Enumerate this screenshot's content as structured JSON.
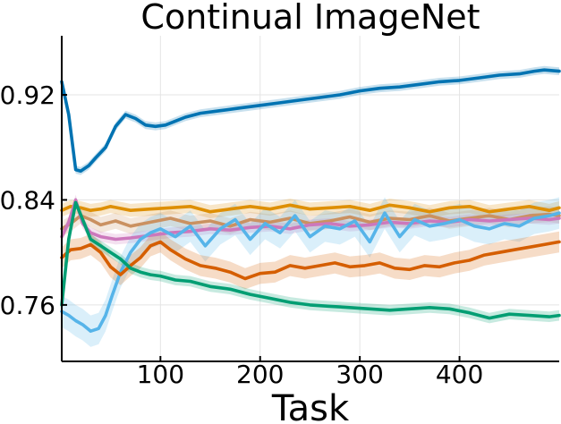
{
  "chart_data": {
    "type": "line",
    "title": "Continual ImageNet",
    "xlabel": "Task",
    "ylabel": "",
    "xlim": [
      1,
      500
    ],
    "ylim": [
      0.717,
      0.965
    ],
    "xticks": [
      100,
      200,
      300,
      400
    ],
    "yticks": [
      0.76,
      0.84,
      0.92
    ],
    "ytick_labels": [
      "0.76",
      "0.84",
      "0.92"
    ],
    "grid": true,
    "legend": "none",
    "series": [
      {
        "color": "#0173b2",
        "band": 0.003,
        "x": [
          1,
          8,
          15,
          20,
          28,
          35,
          45,
          55,
          65,
          75,
          85,
          95,
          105,
          115,
          125,
          140,
          160,
          180,
          200,
          220,
          240,
          260,
          280,
          300,
          320,
          340,
          360,
          380,
          400,
          420,
          440,
          460,
          475,
          485,
          500
        ],
        "y": [
          0.93,
          0.905,
          0.863,
          0.862,
          0.866,
          0.872,
          0.88,
          0.896,
          0.905,
          0.902,
          0.897,
          0.896,
          0.897,
          0.9,
          0.903,
          0.906,
          0.908,
          0.91,
          0.912,
          0.914,
          0.916,
          0.918,
          0.92,
          0.923,
          0.925,
          0.926,
          0.928,
          0.93,
          0.931,
          0.933,
          0.935,
          0.936,
          0.938,
          0.939,
          0.938
        ]
      },
      {
        "color": "#de8f05",
        "band": 0.005,
        "x": [
          1,
          10,
          20,
          30,
          40,
          50,
          70,
          90,
          110,
          130,
          150,
          170,
          190,
          210,
          230,
          250,
          270,
          290,
          310,
          330,
          350,
          370,
          390,
          410,
          430,
          450,
          470,
          490,
          500
        ],
        "y": [
          0.832,
          0.835,
          0.834,
          0.832,
          0.833,
          0.835,
          0.832,
          0.833,
          0.834,
          0.835,
          0.831,
          0.833,
          0.835,
          0.833,
          0.836,
          0.833,
          0.834,
          0.835,
          0.832,
          0.836,
          0.834,
          0.831,
          0.834,
          0.835,
          0.831,
          0.833,
          0.835,
          0.832,
          0.834
        ]
      },
      {
        "color": "#ca9161",
        "band": 0.006,
        "x": [
          1,
          10,
          20,
          30,
          40,
          55,
          70,
          90,
          110,
          130,
          150,
          170,
          190,
          210,
          230,
          250,
          270,
          290,
          310,
          330,
          350,
          370,
          390,
          410,
          430,
          450,
          470,
          490,
          500
        ],
        "y": [
          0.818,
          0.822,
          0.828,
          0.825,
          0.821,
          0.824,
          0.82,
          0.823,
          0.826,
          0.822,
          0.824,
          0.82,
          0.825,
          0.823,
          0.826,
          0.822,
          0.824,
          0.827,
          0.823,
          0.826,
          0.825,
          0.828,
          0.824,
          0.826,
          0.828,
          0.825,
          0.828,
          0.829,
          0.828
        ]
      },
      {
        "color": "#cc78bc",
        "band": 0.004,
        "x": [
          1,
          8,
          15,
          22,
          30,
          40,
          55,
          70,
          90,
          110,
          130,
          150,
          170,
          190,
          210,
          230,
          250,
          270,
          290,
          310,
          330,
          350,
          370,
          390,
          410,
          430,
          450,
          470,
          490,
          500
        ],
        "y": [
          0.812,
          0.823,
          0.84,
          0.822,
          0.815,
          0.812,
          0.81,
          0.811,
          0.813,
          0.815,
          0.816,
          0.818,
          0.817,
          0.819,
          0.82,
          0.818,
          0.821,
          0.822,
          0.82,
          0.821,
          0.823,
          0.822,
          0.824,
          0.823,
          0.825,
          0.824,
          0.825,
          0.826,
          0.825,
          0.826
        ]
      },
      {
        "color": "#56b4e9",
        "band": 0.012,
        "x": [
          1,
          8,
          15,
          22,
          30,
          38,
          45,
          52,
          60,
          70,
          80,
          90,
          100,
          115,
          130,
          145,
          160,
          175,
          190,
          205,
          220,
          235,
          250,
          265,
          280,
          295,
          310,
          325,
          340,
          355,
          370,
          385,
          400,
          415,
          430,
          445,
          460,
          475,
          490,
          500
        ],
        "y": [
          0.755,
          0.752,
          0.748,
          0.745,
          0.74,
          0.742,
          0.752,
          0.768,
          0.785,
          0.8,
          0.81,
          0.815,
          0.818,
          0.812,
          0.82,
          0.805,
          0.818,
          0.825,
          0.81,
          0.822,
          0.815,
          0.828,
          0.812,
          0.82,
          0.818,
          0.824,
          0.808,
          0.83,
          0.812,
          0.825,
          0.82,
          0.822,
          0.825,
          0.82,
          0.818,
          0.822,
          0.82,
          0.826,
          0.828,
          0.83
        ]
      },
      {
        "color": "#d55e00",
        "band": 0.008,
        "x": [
          1,
          10,
          20,
          30,
          40,
          50,
          60,
          70,
          80,
          90,
          100,
          110,
          125,
          140,
          155,
          170,
          185,
          200,
          215,
          230,
          245,
          260,
          275,
          290,
          305,
          320,
          335,
          350,
          365,
          380,
          395,
          410,
          425,
          440,
          455,
          470,
          485,
          500
        ],
        "y": [
          0.796,
          0.802,
          0.803,
          0.806,
          0.8,
          0.789,
          0.783,
          0.79,
          0.796,
          0.805,
          0.808,
          0.802,
          0.795,
          0.79,
          0.788,
          0.785,
          0.78,
          0.784,
          0.785,
          0.79,
          0.788,
          0.79,
          0.792,
          0.789,
          0.79,
          0.792,
          0.788,
          0.787,
          0.79,
          0.789,
          0.792,
          0.794,
          0.798,
          0.8,
          0.802,
          0.804,
          0.806,
          0.808
        ]
      },
      {
        "color": "#029e73",
        "band": 0.004,
        "x": [
          1,
          8,
          15,
          22,
          30,
          40,
          50,
          60,
          70,
          80,
          90,
          100,
          115,
          130,
          150,
          170,
          190,
          210,
          230,
          250,
          270,
          290,
          310,
          330,
          350,
          370,
          390,
          410,
          430,
          450,
          470,
          490,
          500
        ],
        "y": [
          0.76,
          0.81,
          0.838,
          0.825,
          0.81,
          0.805,
          0.8,
          0.795,
          0.788,
          0.785,
          0.783,
          0.782,
          0.779,
          0.778,
          0.774,
          0.772,
          0.768,
          0.765,
          0.762,
          0.76,
          0.759,
          0.758,
          0.757,
          0.756,
          0.757,
          0.758,
          0.757,
          0.754,
          0.75,
          0.753,
          0.752,
          0.751,
          0.752
        ]
      }
    ]
  }
}
